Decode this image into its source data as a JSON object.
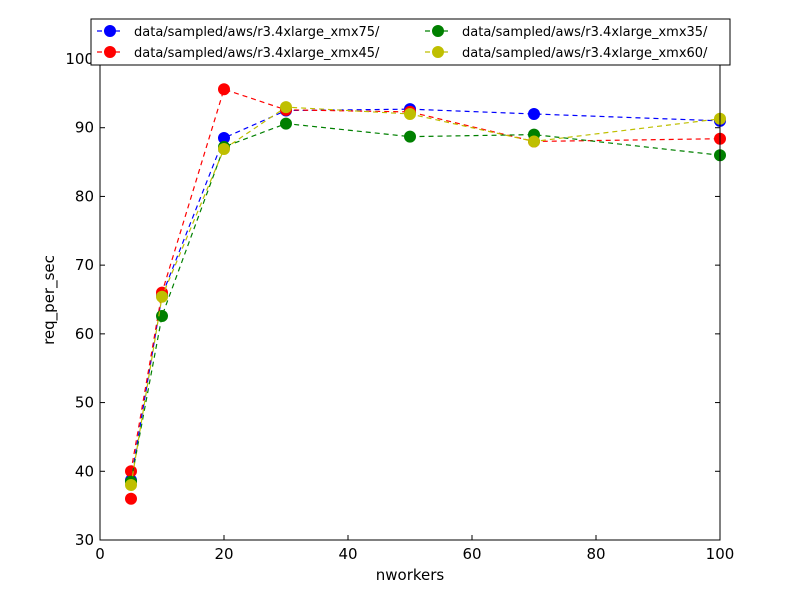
{
  "chart_data": {
    "type": "line",
    "title": "",
    "xlabel": "nworkers",
    "ylabel": "req_per_sec",
    "xlim": [
      0,
      100
    ],
    "ylim": [
      30,
      100
    ],
    "xticks": [
      0,
      20,
      40,
      60,
      80,
      100
    ],
    "yticks": [
      30,
      40,
      50,
      60,
      70,
      80,
      90,
      100
    ],
    "grid": false,
    "legend_position": "top",
    "series": [
      {
        "name": "data/sampled/aws/r3.4xlarge_xmx75/",
        "color": "#0000ff",
        "x": [
          5,
          10,
          20,
          30,
          50,
          70,
          100
        ],
        "y": [
          38.7,
          65.6,
          88.5,
          92.5,
          92.7,
          92.0,
          91.0
        ]
      },
      {
        "name": "data/sampled/aws/r3.4xlarge_xmx45/",
        "color": "#ff0000",
        "x": [
          5,
          5,
          10,
          20,
          30,
          50,
          70,
          100
        ],
        "y": [
          36.0,
          40.0,
          66.0,
          95.6,
          92.6,
          92.3,
          88.0,
          88.4
        ]
      },
      {
        "name": "data/sampled/aws/r3.4xlarge_xmx35/",
        "color": "#008000",
        "x": [
          5,
          10,
          20,
          30,
          50,
          70,
          100
        ],
        "y": [
          38.5,
          62.6,
          87.2,
          90.6,
          88.7,
          89.0,
          86.0
        ]
      },
      {
        "name": "data/sampled/aws/r3.4xlarge_xmx60/",
        "color": "#bfbf00",
        "x": [
          5,
          10,
          20,
          30,
          50,
          70,
          100
        ],
        "y": [
          38.0,
          65.4,
          86.9,
          93.0,
          92.0,
          88.0,
          91.3
        ]
      }
    ]
  }
}
